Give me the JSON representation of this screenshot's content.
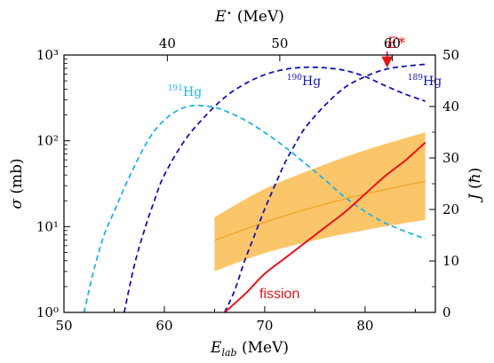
{
  "chart_data": {
    "type": "line",
    "xlabel_bottom": "E_lab (MeV)",
    "xlabel_top": "E* (MeV)",
    "ylabel_left": "σ (mb)",
    "ylabel_right": "J (ħ)",
    "x_bottom": {
      "min": 50,
      "max": 87,
      "ticks": [
        "50",
        "60",
        "70",
        "80"
      ]
    },
    "x_top": {
      "ticks": [
        {
          "label": "40",
          "at_elab": 60.3
        },
        {
          "label": "50",
          "at_elab": 71.5
        },
        {
          "label": "60",
          "at_elab": 82.7
        }
      ]
    },
    "y_left": {
      "scale": "log",
      "min": 1,
      "max": 1000,
      "ticks": [
        "10⁰",
        "10¹",
        "10²",
        "10³"
      ]
    },
    "y_right": {
      "min": 0,
      "max": 50,
      "ticks": [
        "0",
        "10",
        "20",
        "30",
        "40",
        "50"
      ]
    },
    "series": [
      {
        "name": "191Hg",
        "label_main": "Hg",
        "label_sup": "191",
        "axis": "left",
        "style": "dashed",
        "color": "#1fb3e6",
        "x": [
          52,
          53,
          54,
          55,
          56,
          57,
          58,
          59,
          60,
          61,
          62,
          63,
          64,
          65,
          66,
          68,
          70,
          72,
          74,
          76,
          78,
          80,
          82,
          84,
          86
        ],
        "y": [
          1,
          3.2,
          8,
          15,
          28,
          50,
          85,
          130,
          175,
          215,
          245,
          258,
          255,
          245,
          225,
          175,
          125,
          85,
          55,
          35,
          22,
          15,
          11,
          8.8,
          7.2
        ]
      },
      {
        "name": "190Hg",
        "label_main": "Hg",
        "label_sup": "190",
        "axis": "left",
        "style": "dashed",
        "color": "#1212b8",
        "x": [
          56,
          57,
          58,
          59,
          60,
          62,
          64,
          66,
          68,
          70,
          72,
          74,
          76,
          78,
          80,
          82,
          84,
          86
        ],
        "y": [
          1,
          3.5,
          9,
          20,
          40,
          100,
          190,
          320,
          460,
          590,
          680,
          720,
          710,
          660,
          560,
          440,
          350,
          290
        ]
      },
      {
        "name": "189Hg",
        "label_main": "Hg",
        "label_sup": "189",
        "axis": "left",
        "style": "dashed",
        "color": "#1212b8",
        "x": [
          66,
          67,
          68,
          69,
          70,
          71,
          72,
          73,
          74,
          76,
          78,
          80,
          82,
          84,
          86
        ],
        "y": [
          1,
          1.8,
          4,
          8,
          16,
          30,
          55,
          90,
          140,
          260,
          420,
          560,
          680,
          740,
          780
        ]
      },
      {
        "name": "fission",
        "label": "fission",
        "axis": "right",
        "style": "solid",
        "color": "#e8141c",
        "x": [
          66,
          68,
          70,
          72,
          74,
          76,
          78,
          80,
          82,
          84,
          86
        ],
        "y": [
          0,
          3.5,
          7.5,
          10.5,
          13.5,
          16.5,
          19.5,
          23,
          26.5,
          29.5,
          33
        ]
      },
      {
        "name": "band",
        "axis": "right",
        "style": "band",
        "color": "#fbc66a",
        "line_color": "#f0a020",
        "x": [
          65,
          70,
          75,
          80,
          86
        ],
        "y_mid": [
          14,
          17.5,
          20.5,
          23,
          25.5
        ],
        "y_low": [
          8,
          11.5,
          14,
          16,
          18
        ],
        "y_high": [
          18.5,
          24,
          28,
          31.5,
          35
        ]
      }
    ],
    "annotations": [
      {
        "text": "E*",
        "x_elab": 82.2,
        "color": "#e8141c"
      }
    ]
  }
}
